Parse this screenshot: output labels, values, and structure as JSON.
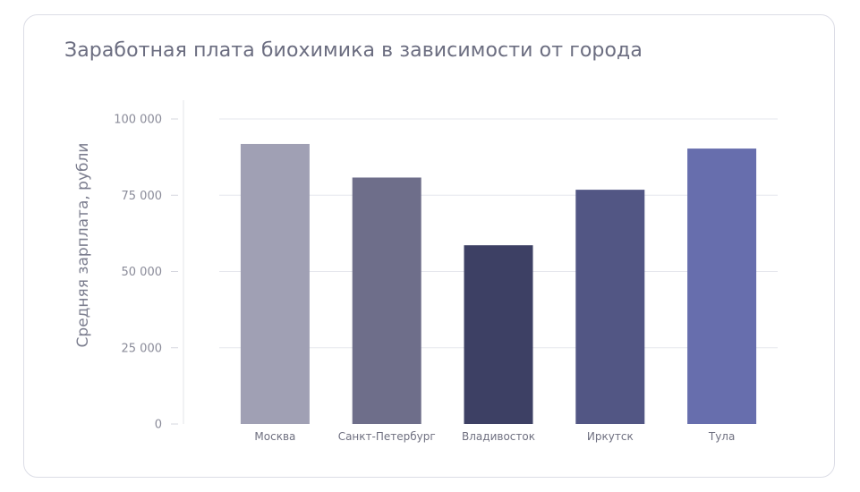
{
  "chart_data": {
    "type": "bar",
    "title": "Заработная плата биохимика в зависимости от города",
    "ylabel": "Средняя зарплата, рубли",
    "xlabel": "",
    "categories": [
      "Москва",
      "Санкт-Петербург",
      "Владивосток",
      "Иркутск",
      "Тула"
    ],
    "values": [
      91800,
      80800,
      58600,
      76800,
      90300
    ],
    "colors": [
      "#a0a0b4",
      "#6e6e8a",
      "#3d4064",
      "#525684",
      "#676ead"
    ],
    "ylim": [
      0,
      100000
    ],
    "yticks": [
      0,
      25000,
      50000,
      75000,
      100000
    ],
    "ytick_labels": [
      "0",
      "25 000",
      "50 000",
      "75 000",
      "100 000"
    ],
    "grid": true,
    "legend": "none"
  }
}
